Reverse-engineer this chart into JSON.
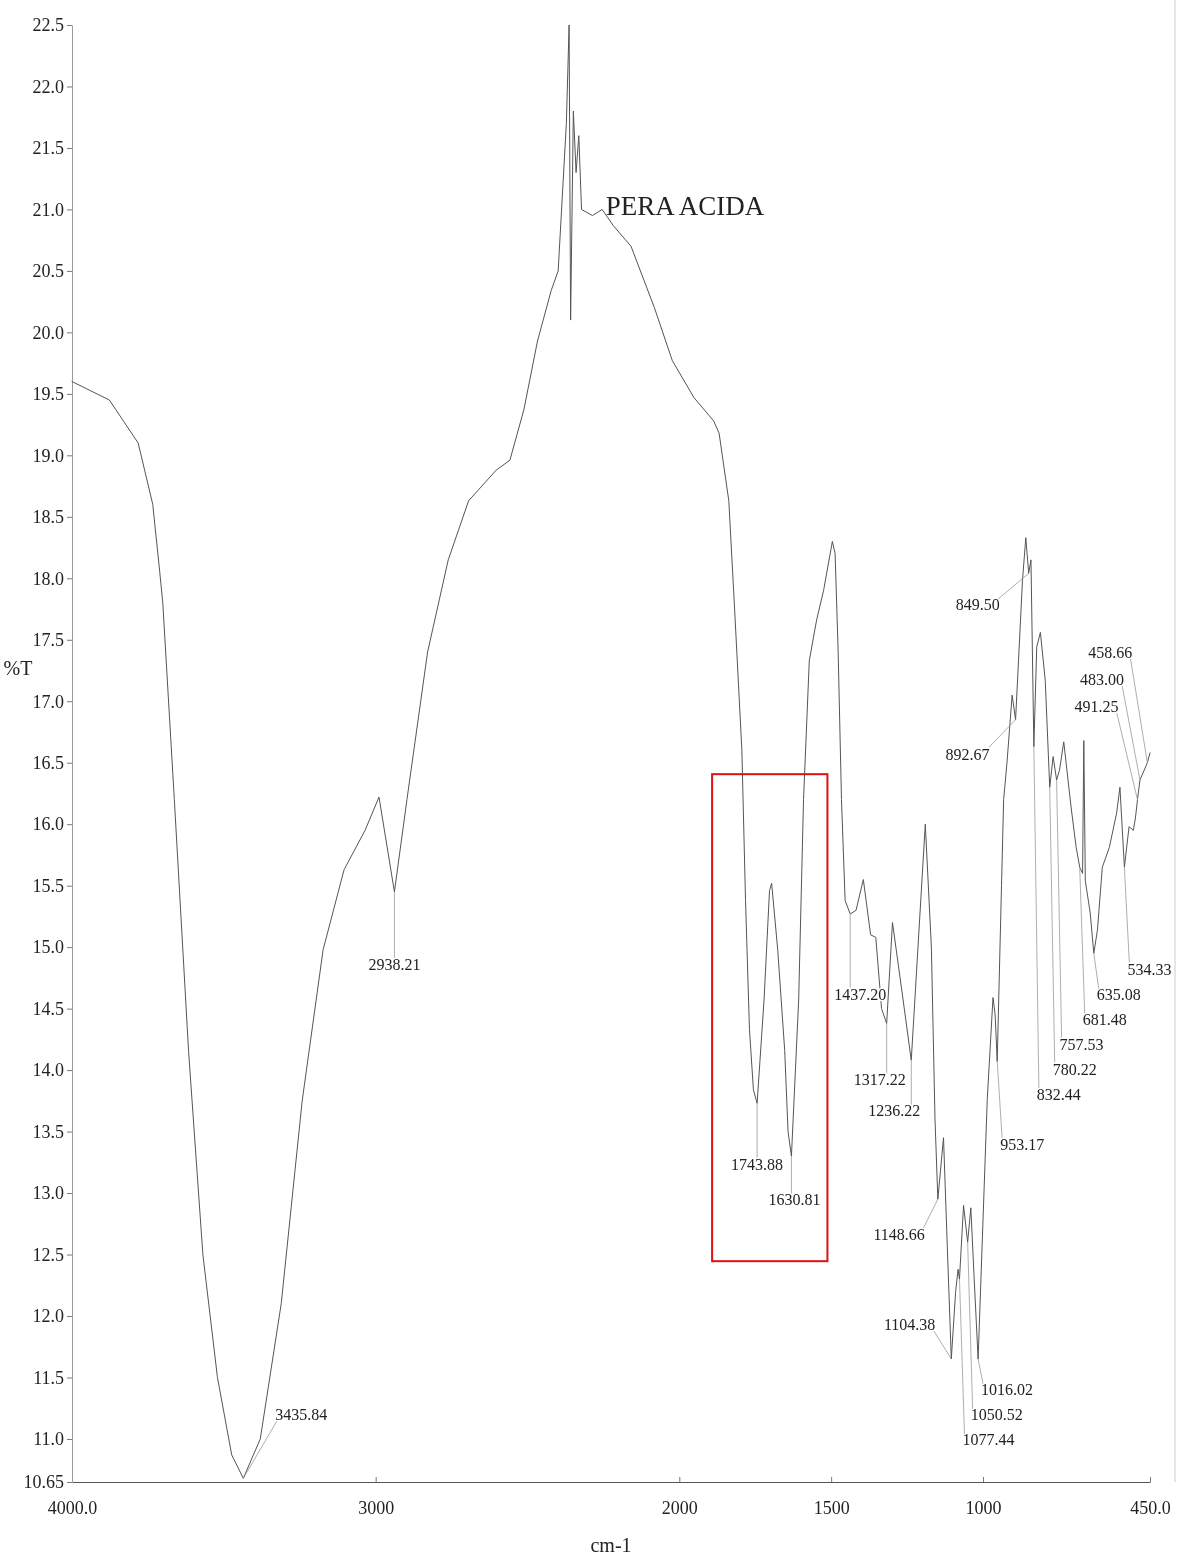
{
  "chart_data": {
    "type": "line",
    "title": "PERA ACIDA",
    "xlabel": "cm-1",
    "ylabel": "%T",
    "xlim": [
      4000,
      450
    ],
    "xticks": [
      {
        "value": 4000,
        "label": "4000.0"
      },
      3000,
      2000,
      1500,
      1000,
      {
        "value": 450,
        "label": "450.0"
      }
    ],
    "ylim": [
      10.65,
      22.5
    ],
    "yticks": [
      10.65,
      {
        "value": 11,
        "label": "11.0"
      },
      11.5,
      {
        "value": 12,
        "label": "12.0"
      },
      12.5,
      {
        "value": 13,
        "label": "13.0"
      },
      13.5,
      {
        "value": 14,
        "label": "14.0"
      },
      14.5,
      {
        "value": 15,
        "label": "15.0"
      },
      15.5,
      {
        "value": 16,
        "label": "16.0"
      },
      16.5,
      {
        "value": 17,
        "label": "17.0"
      },
      17.5,
      {
        "value": 18,
        "label": "18.0"
      },
      18.5,
      {
        "value": 19,
        "label": "19.0"
      },
      19.5,
      {
        "value": 20,
        "label": "20.0"
      },
      20.5,
      {
        "value": 21,
        "label": "21.0"
      },
      21.5,
      {
        "value": 22,
        "label": "22.0"
      },
      22.5
    ],
    "grid": false,
    "x": [
      4000,
      3877,
      3782,
      3734,
      3711,
      3701,
      3663,
      3616,
      3569,
      3521,
      3474,
      3435.84,
      3380,
      3311,
      3242,
      3173,
      3104,
      3035,
      2989,
      2938.21,
      2897,
      2829,
      2761,
      2694,
      2603,
      2558,
      2512,
      2467,
      2422,
      2399,
      2372,
      2363,
      2358,
      2349,
      2340,
      2331,
      2322,
      2286,
      2254,
      2218,
      2159,
      2082,
      2023,
      1952,
      1887,
      1869,
      1837,
      1819,
      1794,
      1782,
      1769,
      1756,
      1743.88,
      1721,
      1703,
      1696,
      1676,
      1653,
      1642,
      1630.81,
      1607,
      1591,
      1572,
      1548,
      1525,
      1496,
      1487,
      1477,
      1466,
      1454,
      1437.2,
      1418,
      1394,
      1370,
      1353,
      1334,
      1317.22,
      1298,
      1263,
      1236.22,
      1190,
      1170,
      1158,
      1148.66,
      1130,
      1118,
      1104.38,
      1090,
      1082,
      1077.44,
      1064,
      1050.52,
      1040,
      1029,
      1016.02,
      986,
      967,
      960,
      953.17,
      939,
      932,
      921,
      904,
      892.67,
      870,
      859,
      849.5,
      842,
      832.44,
      823,
      811,
      795,
      780.22,
      769,
      757.53,
      748,
      734,
      710,
      693,
      681.48,
      672,
      668,
      663,
      647,
      635.08,
      623,
      607,
      584,
      560,
      549,
      534.33,
      519,
      505,
      498,
      491.25,
      483,
      458.66,
      450
    ],
    "series": [
      {
        "color": "#555555",
        "values": [
          19.6,
          19.45,
          19.1,
          18.6,
          18.05,
          17.8,
          16.2,
          14.15,
          12.5,
          11.5,
          10.87,
          10.68,
          11.0,
          12.1,
          13.75,
          14.98,
          15.63,
          15.95,
          16.22,
          15.45,
          16.2,
          17.4,
          18.15,
          18.63,
          18.88,
          18.96,
          19.37,
          19.93,
          20.34,
          20.5,
          21.7,
          22.5,
          20.1,
          21.8,
          21.3,
          21.6,
          21.0,
          20.95,
          21.0,
          20.87,
          20.7,
          20.2,
          19.77,
          19.47,
          19.28,
          19.18,
          18.63,
          17.8,
          16.6,
          15.38,
          14.33,
          13.84,
          13.73,
          14.57,
          15.46,
          15.52,
          14.98,
          14.16,
          13.5,
          13.3,
          14.57,
          16.2,
          17.33,
          17.66,
          17.9,
          18.3,
          18.2,
          17.41,
          16.2,
          15.38,
          15.27,
          15.3,
          15.55,
          15.1,
          15.08,
          14.5,
          14.38,
          15.2,
          14.57,
          14.08,
          16.0,
          15.0,
          13.6,
          12.95,
          13.45,
          12.6,
          11.65,
          12.2,
          12.38,
          12.3,
          12.9,
          12.6,
          12.88,
          12.3,
          11.65,
          13.76,
          14.59,
          14.45,
          14.07,
          15.5,
          16.2,
          16.5,
          17.05,
          16.85,
          17.98,
          18.33,
          18.04,
          18.15,
          16.63,
          17.44,
          17.56,
          17.17,
          16.3,
          16.55,
          16.36,
          16.44,
          16.67,
          16.14,
          15.81,
          15.65,
          15.6,
          16.68,
          15.54,
          15.28,
          14.95,
          15.14,
          15.65,
          15.81,
          16.09,
          16.3,
          15.65,
          15.98,
          15.95,
          16.05,
          16.2,
          16.36,
          16.5,
          16.58
        ]
      }
    ],
    "annotations": [
      {
        "text": "3435.84",
        "x": 3435.84,
        "y": 10.68
      },
      {
        "text": "2938.21",
        "x": 2938.21,
        "y": 15.45
      },
      {
        "text": "1743.88",
        "x": 1743.88,
        "y": 13.73
      },
      {
        "text": "1630.81",
        "x": 1630.81,
        "y": 13.3
      },
      {
        "text": "1437.20",
        "x": 1437.2,
        "y": 15.27
      },
      {
        "text": "1317.22",
        "x": 1317.22,
        "y": 14.38
      },
      {
        "text": "1236.22",
        "x": 1236.22,
        "y": 14.08
      },
      {
        "text": "1148.66",
        "x": 1148.66,
        "y": 12.95
      },
      {
        "text": "1104.38",
        "x": 1104.38,
        "y": 11.65
      },
      {
        "text": "1077.44",
        "x": 1077.44,
        "y": 12.3
      },
      {
        "text": "1050.52",
        "x": 1050.52,
        "y": 12.6
      },
      {
        "text": "1016.02",
        "x": 1016.02,
        "y": 11.65
      },
      {
        "text": "953.17",
        "x": 953.17,
        "y": 14.07
      },
      {
        "text": "892.67",
        "x": 892.67,
        "y": 16.85
      },
      {
        "text": "849.50",
        "x": 849.5,
        "y": 18.04
      },
      {
        "text": "832.44",
        "x": 832.44,
        "y": 16.63
      },
      {
        "text": "780.22",
        "x": 780.22,
        "y": 16.3
      },
      {
        "text": "757.53",
        "x": 757.53,
        "y": 16.36
      },
      {
        "text": "681.48",
        "x": 681.48,
        "y": 15.65
      },
      {
        "text": "635.08",
        "x": 635.08,
        "y": 14.95
      },
      {
        "text": "534.33",
        "x": 534.33,
        "y": 15.65
      },
      {
        "text": "491.25",
        "x": 491.25,
        "y": 16.2
      },
      {
        "text": "483.00",
        "x": 483,
        "y": 16.36
      },
      {
        "text": "458.66",
        "x": 458.66,
        "y": 16.5
      }
    ]
  }
}
